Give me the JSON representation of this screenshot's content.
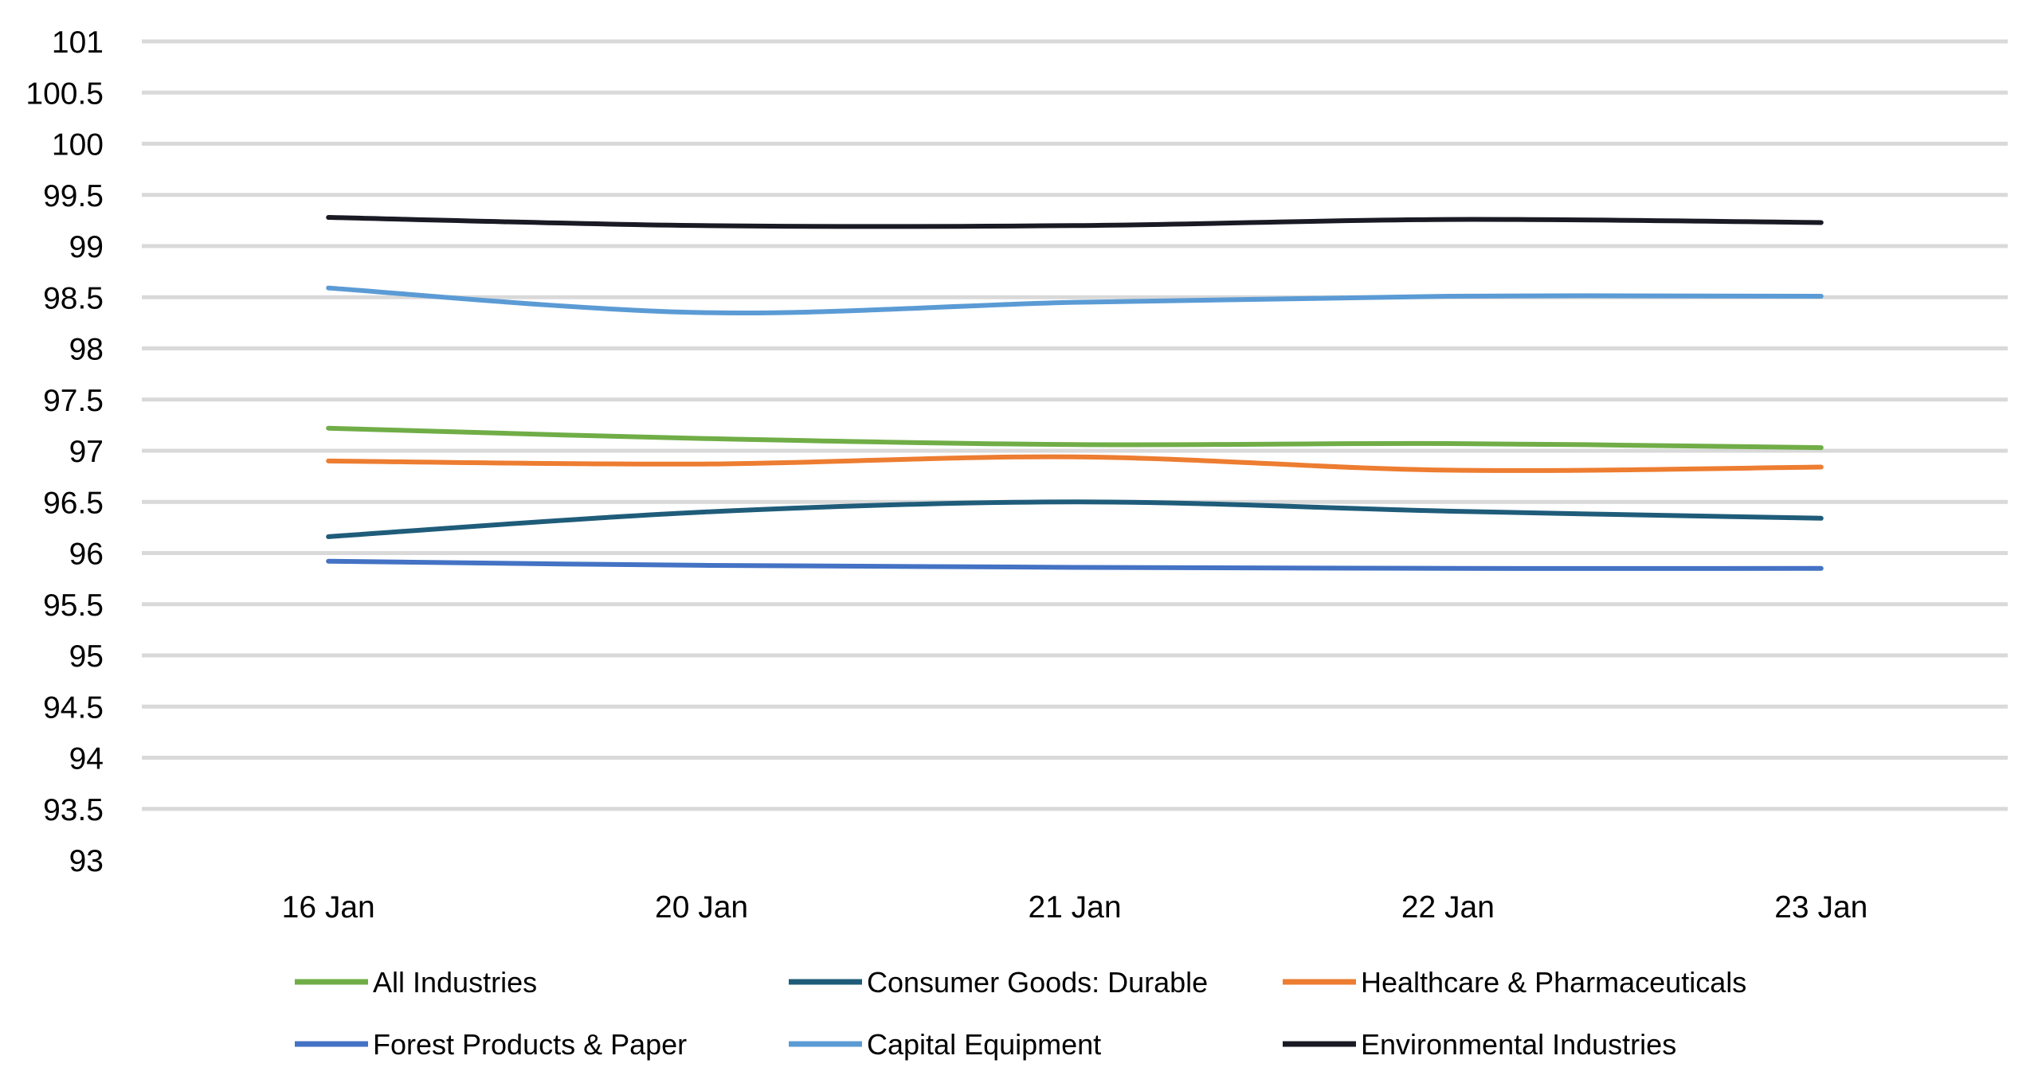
{
  "chart_data": {
    "type": "line",
    "title": "",
    "xlabel": "",
    "ylabel": "",
    "categories": [
      "16 Jan",
      "20 Jan",
      "21 Jan",
      "22 Jan",
      "23 Jan"
    ],
    "ylim": [
      93,
      101
    ],
    "yticks": [
      101,
      100.5,
      100,
      99.5,
      99,
      98.5,
      98,
      97.5,
      97,
      96.5,
      96,
      95.5,
      95,
      94.5,
      94,
      93.5,
      93
    ],
    "grid": true,
    "legend_position": "bottom",
    "series": [
      {
        "name": "All Industries",
        "color": "#70AD47",
        "values": [
          97.22,
          97.12,
          97.06,
          97.07,
          97.03
        ]
      },
      {
        "name": "Consumer Goods: Durable",
        "color": "#1F5C7A",
        "values": [
          96.16,
          96.4,
          96.5,
          96.41,
          96.34
        ]
      },
      {
        "name": "Healthcare & Pharmaceuticals",
        "color": "#ED7D31",
        "values": [
          96.9,
          96.87,
          96.94,
          96.81,
          96.84
        ]
      },
      {
        "name": "Forest Products & Paper",
        "color": "#4472C4",
        "values": [
          95.92,
          95.88,
          95.86,
          95.85,
          95.85
        ]
      },
      {
        "name": "Capital Equipment",
        "color": "#5B9BD5",
        "values": [
          98.59,
          98.35,
          98.45,
          98.51,
          98.51
        ]
      },
      {
        "name": "Environmental Industries",
        "color": "#1A1A24",
        "values": [
          99.28,
          99.2,
          99.2,
          99.26,
          99.23
        ]
      }
    ]
  }
}
